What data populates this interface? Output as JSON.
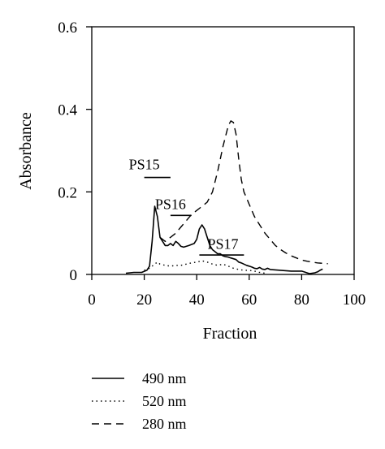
{
  "chart_data": {
    "type": "line",
    "xlabel": "Fraction",
    "ylabel": "Absorbance",
    "xlim": [
      0,
      100
    ],
    "ylim": [
      0,
      0.6
    ],
    "x_ticks": [
      0,
      20,
      40,
      60,
      80,
      100
    ],
    "x_tick_labels": [
      "0",
      "20",
      "40",
      "60",
      "80",
      "100"
    ],
    "y_ticks": [
      0,
      0.2,
      0.4,
      0.6
    ],
    "y_tick_labels": [
      "0",
      "0.2",
      "0.4",
      "0.6"
    ],
    "grid": false,
    "legend": "bottom-left, below plot",
    "series": [
      {
        "name": "490 nm",
        "style": "solid",
        "points": [
          [
            13,
            0.003
          ],
          [
            16,
            0.005
          ],
          [
            19,
            0.005
          ],
          [
            21,
            0.01
          ],
          [
            22,
            0.02
          ],
          [
            23,
            0.08
          ],
          [
            24,
            0.165
          ],
          [
            25,
            0.14
          ],
          [
            26,
            0.09
          ],
          [
            27,
            0.08
          ],
          [
            28,
            0.07
          ],
          [
            29,
            0.07
          ],
          [
            30,
            0.075
          ],
          [
            31,
            0.07
          ],
          [
            32,
            0.08
          ],
          [
            33,
            0.075
          ],
          [
            34,
            0.068
          ],
          [
            35,
            0.066
          ],
          [
            37,
            0.07
          ],
          [
            39,
            0.075
          ],
          [
            40,
            0.085
          ],
          [
            41,
            0.11
          ],
          [
            42,
            0.12
          ],
          [
            43,
            0.11
          ],
          [
            44,
            0.09
          ],
          [
            45,
            0.07
          ],
          [
            46,
            0.06
          ],
          [
            47,
            0.055
          ],
          [
            48,
            0.05
          ],
          [
            49,
            0.05
          ],
          [
            50,
            0.045
          ],
          [
            51,
            0.043
          ],
          [
            52,
            0.042
          ],
          [
            53,
            0.04
          ],
          [
            54,
            0.038
          ],
          [
            55,
            0.036
          ],
          [
            56,
            0.03
          ],
          [
            57,
            0.028
          ],
          [
            58,
            0.025
          ],
          [
            59,
            0.022
          ],
          [
            60,
            0.02
          ],
          [
            61,
            0.018
          ],
          [
            62,
            0.015
          ],
          [
            63,
            0.014
          ],
          [
            64,
            0.017
          ],
          [
            65,
            0.013
          ],
          [
            66,
            0.012
          ],
          [
            67,
            0.015
          ],
          [
            68,
            0.012
          ],
          [
            70,
            0.011
          ],
          [
            72,
            0.01
          ],
          [
            74,
            0.009
          ],
          [
            76,
            0.008
          ],
          [
            78,
            0.008
          ],
          [
            80,
            0.008
          ],
          [
            81,
            0.006
          ],
          [
            82,
            0.004
          ],
          [
            83,
            0.002
          ],
          [
            84,
            0.003
          ],
          [
            85,
            0.004
          ],
          [
            86,
            0.006
          ],
          [
            87,
            0.01
          ],
          [
            88,
            0.013
          ]
        ]
      },
      {
        "name": "520 nm",
        "style": "dotted",
        "points": [
          [
            20,
            0.01
          ],
          [
            22,
            0.015
          ],
          [
            24,
            0.025
          ],
          [
            25,
            0.03
          ],
          [
            26,
            0.025
          ],
          [
            28,
            0.022
          ],
          [
            30,
            0.02
          ],
          [
            32,
            0.022
          ],
          [
            34,
            0.022
          ],
          [
            36,
            0.025
          ],
          [
            38,
            0.028
          ],
          [
            40,
            0.03
          ],
          [
            42,
            0.033
          ],
          [
            44,
            0.03
          ],
          [
            46,
            0.025
          ],
          [
            48,
            0.022
          ],
          [
            50,
            0.025
          ],
          [
            52,
            0.02
          ],
          [
            54,
            0.015
          ],
          [
            56,
            0.012
          ],
          [
            58,
            0.01
          ],
          [
            60,
            0.01
          ],
          [
            62,
            0.008
          ],
          [
            64,
            0.005
          ],
          [
            66,
            0.003
          ]
        ]
      },
      {
        "name": "280 nm",
        "style": "dashed",
        "points": [
          [
            26,
            0.09
          ],
          [
            28,
            0.08
          ],
          [
            30,
            0.09
          ],
          [
            32,
            0.1
          ],
          [
            34,
            0.115
          ],
          [
            36,
            0.13
          ],
          [
            38,
            0.145
          ],
          [
            40,
            0.155
          ],
          [
            42,
            0.165
          ],
          [
            44,
            0.175
          ],
          [
            46,
            0.2
          ],
          [
            48,
            0.25
          ],
          [
            50,
            0.31
          ],
          [
            52,
            0.36
          ],
          [
            53,
            0.372
          ],
          [
            54,
            0.368
          ],
          [
            55,
            0.34
          ],
          [
            56,
            0.28
          ],
          [
            57,
            0.23
          ],
          [
            58,
            0.2
          ],
          [
            59,
            0.185
          ],
          [
            60,
            0.17
          ],
          [
            62,
            0.14
          ],
          [
            64,
            0.12
          ],
          [
            66,
            0.1
          ],
          [
            68,
            0.085
          ],
          [
            70,
            0.07
          ],
          [
            72,
            0.06
          ],
          [
            74,
            0.052
          ],
          [
            76,
            0.045
          ],
          [
            78,
            0.04
          ],
          [
            80,
            0.035
          ],
          [
            82,
            0.032
          ],
          [
            84,
            0.03
          ],
          [
            86,
            0.028
          ],
          [
            88,
            0.027
          ],
          [
            90,
            0.026
          ]
        ]
      }
    ],
    "annotations": [
      {
        "text": "PS15",
        "x": 20,
        "y": 0.255,
        "bar": [
          20,
          30,
          0.235
        ]
      },
      {
        "text": "PS16",
        "x": 30,
        "y": 0.158,
        "bar": [
          30,
          38,
          0.143
        ]
      },
      {
        "text": "PS17",
        "x": 50,
        "y": 0.062,
        "bar": [
          41,
          58,
          0.047
        ]
      }
    ]
  }
}
